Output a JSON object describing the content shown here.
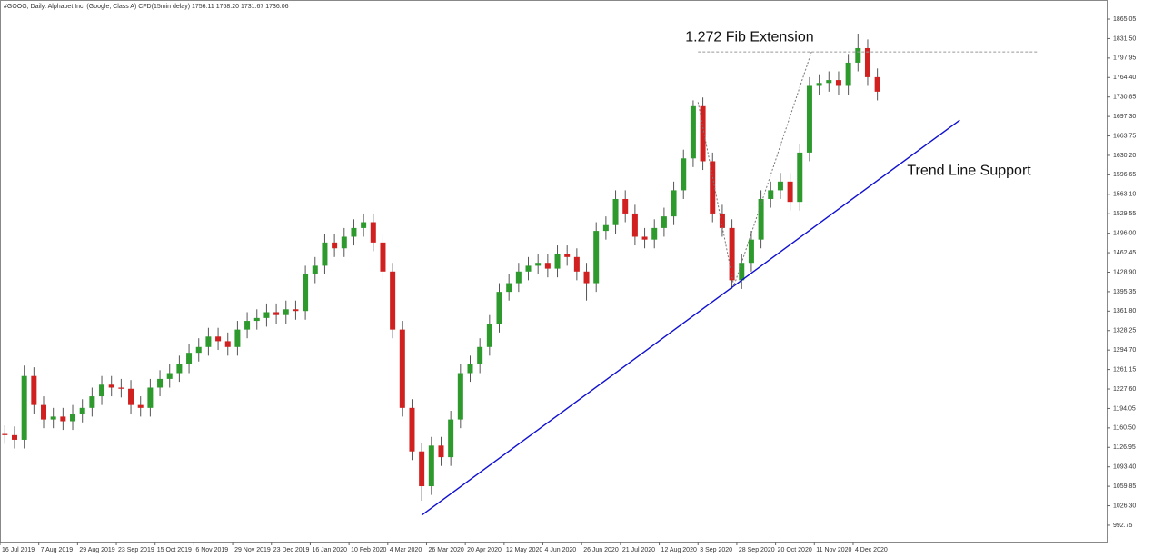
{
  "chart_data": {
    "type": "candlestick",
    "title": "#GOOG, Daily: Alphabet Inc. (Google, Class A) CFD(15min delay)  1756.11 1768.20 1731.67 1736.06",
    "up_color": "#2e9a2e",
    "down_color": "#d0201f",
    "categories": [
      "16 Jul 2019",
      null,
      null,
      null,
      "7 Aug 2019",
      null,
      null,
      null,
      "29 Aug 2019",
      null,
      null,
      null,
      "23 Sep 2019",
      null,
      null,
      null,
      "15 Oct 2019",
      null,
      null,
      null,
      "6 Nov 2019",
      null,
      null,
      null,
      "29 Nov 2019",
      null,
      null,
      null,
      "23 Dec 2019",
      null,
      null,
      null,
      "16 Jan 2020",
      null,
      null,
      null,
      "10 Feb 2020",
      null,
      null,
      null,
      "4 Mar 2020",
      null,
      null,
      null,
      "26 Mar 2020",
      null,
      null,
      null,
      "20 Apr 2020",
      null,
      null,
      null,
      "12 May 2020",
      null,
      null,
      null,
      "4 Jun 2020",
      null,
      null,
      null,
      "26 Jun 2020",
      null,
      null,
      null,
      "21 Jul 2020",
      null,
      null,
      null,
      "12 Aug 2020",
      null,
      null,
      null,
      "3 Sep 2020",
      null,
      null,
      null,
      "28 Sep 2020",
      null,
      null,
      null,
      "20 Oct 2020",
      null,
      null,
      null,
      "11 Nov 2020",
      null,
      null,
      null,
      "4 Dec 2020",
      null,
      null
    ],
    "open": [
      1150,
      1148,
      1140,
      1250,
      1200,
      1175,
      1180,
      1172,
      1185,
      1195,
      1215,
      1235,
      1230,
      1228,
      1200,
      1195,
      1230,
      1245,
      1255,
      1270,
      1290,
      1300,
      1318,
      1310,
      1300,
      1330,
      1345,
      1350,
      1360,
      1355,
      1365,
      1362,
      1425,
      1440,
      1480,
      1470,
      1490,
      1505,
      1515,
      1480,
      1430,
      1330,
      1195,
      1120,
      1060,
      1130,
      1110,
      1175,
      1255,
      1270,
      1300,
      1340,
      1395,
      1410,
      1430,
      1440,
      1445,
      1435,
      1460,
      1455,
      1430,
      1410,
      1500,
      1510,
      1555,
      1530,
      1490,
      1485,
      1505,
      1525,
      1570,
      1625,
      1715,
      1620,
      1530,
      1505,
      1415,
      1445,
      1485,
      1555,
      1570,
      1585,
      1550,
      1635,
      1750,
      1755,
      1760,
      1750,
      1790,
      1815,
      1765
    ],
    "high": [
      1165,
      1163,
      1268,
      1265,
      1215,
      1195,
      1195,
      1200,
      1210,
      1230,
      1250,
      1250,
      1245,
      1243,
      1215,
      1245,
      1260,
      1270,
      1285,
      1305,
      1315,
      1333,
      1333,
      1325,
      1345,
      1360,
      1365,
      1375,
      1375,
      1380,
      1380,
      1440,
      1455,
      1495,
      1495,
      1505,
      1520,
      1530,
      1530,
      1495,
      1445,
      1345,
      1210,
      1135,
      1145,
      1145,
      1190,
      1270,
      1285,
      1315,
      1355,
      1410,
      1425,
      1445,
      1455,
      1460,
      1460,
      1475,
      1475,
      1470,
      1445,
      1515,
      1525,
      1570,
      1570,
      1545,
      1505,
      1520,
      1540,
      1585,
      1640,
      1725,
      1730,
      1635,
      1545,
      1520,
      1460,
      1500,
      1570,
      1585,
      1600,
      1600,
      1650,
      1765,
      1770,
      1775,
      1775,
      1805,
      1840,
      1830,
      1780
    ],
    "low": [
      1133,
      1125,
      1125,
      1185,
      1160,
      1160,
      1157,
      1157,
      1170,
      1180,
      1200,
      1215,
      1213,
      1185,
      1180,
      1180,
      1215,
      1230,
      1240,
      1255,
      1275,
      1285,
      1295,
      1285,
      1285,
      1315,
      1330,
      1335,
      1340,
      1340,
      1347,
      1347,
      1410,
      1425,
      1455,
      1455,
      1475,
      1490,
      1465,
      1415,
      1315,
      1180,
      1105,
      1035,
      1045,
      1095,
      1095,
      1160,
      1240,
      1255,
      1285,
      1325,
      1380,
      1395,
      1415,
      1425,
      1420,
      1420,
      1440,
      1415,
      1380,
      1395,
      1485,
      1495,
      1515,
      1475,
      1470,
      1470,
      1490,
      1510,
      1555,
      1610,
      1605,
      1515,
      1490,
      1400,
      1400,
      1430,
      1470,
      1540,
      1555,
      1535,
      1535,
      1620,
      1735,
      1740,
      1735,
      1735,
      1775,
      1750,
      1725
    ],
    "close": [
      1148,
      1140,
      1250,
      1200,
      1175,
      1180,
      1172,
      1185,
      1195,
      1215,
      1235,
      1230,
      1228,
      1200,
      1195,
      1230,
      1245,
      1255,
      1270,
      1290,
      1300,
      1318,
      1310,
      1300,
      1330,
      1345,
      1350,
      1360,
      1355,
      1365,
      1362,
      1425,
      1440,
      1480,
      1470,
      1490,
      1505,
      1515,
      1480,
      1430,
      1330,
      1195,
      1120,
      1060,
      1130,
      1110,
      1175,
      1255,
      1270,
      1300,
      1340,
      1395,
      1410,
      1430,
      1440,
      1445,
      1435,
      1460,
      1455,
      1430,
      1410,
      1500,
      1510,
      1555,
      1530,
      1490,
      1485,
      1505,
      1525,
      1570,
      1625,
      1715,
      1620,
      1530,
      1505,
      1415,
      1445,
      1485,
      1555,
      1570,
      1585,
      1550,
      1635,
      1750,
      1755,
      1760,
      1750,
      1790,
      1815,
      1765,
      1740
    ],
    "ylim": [
      964.5,
      1896.4
    ],
    "yticks": [
      1865.05,
      {
        "value": 1831.5,
        "label": "1831.50"
      },
      1797.95,
      {
        "value": 1764.4,
        "label": "1764.40"
      },
      1730.85,
      {
        "value": 1697.3,
        "label": "1697.30"
      },
      1663.75,
      {
        "value": 1630.2,
        "label": "1630.20"
      },
      1596.65,
      {
        "value": 1563.1,
        "label": "1563.10"
      },
      1529.55,
      {
        "value": 1496,
        "label": "1496.00"
      },
      1462.45,
      {
        "value": 1428.9,
        "label": "1428.90"
      },
      1395.35,
      {
        "value": 1361.8,
        "label": "1361.80"
      },
      1328.25,
      {
        "value": 1294.7,
        "label": "1294.70"
      },
      1261.15,
      {
        "value": 1227.6,
        "label": "1227.60"
      },
      1194.05,
      {
        "value": 1160.5,
        "label": "1160.50"
      },
      1126.95,
      {
        "value": 1093.4,
        "label": "1093.40"
      },
      1059.85,
      {
        "value": 1026.3,
        "label": "1026.30"
      },
      992.75
    ],
    "trend_line": {
      "x": [
        43,
        98.5
      ],
      "y": [
        1010,
        1691
      ],
      "color": "#1010d0"
    },
    "fib_level": {
      "x": [
        71.5,
        106.5
      ],
      "y": [
        1808.5,
        1808.5
      ],
      "color": "#999999"
    },
    "zigzag": {
      "x": [
        71.5,
        75.2,
        83.2
      ],
      "y": [
        1722,
        1405,
        1808.5
      ],
      "color": "#777777"
    },
    "annotations": [
      "1.272 Fib Extension",
      "Trend Line Support"
    ]
  }
}
